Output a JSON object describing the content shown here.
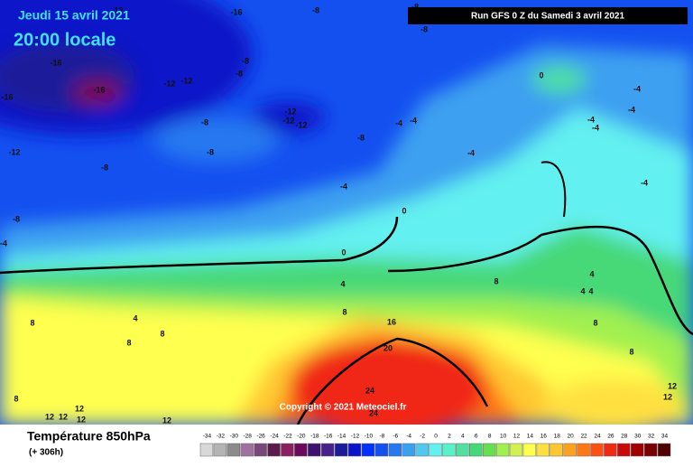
{
  "header": {
    "date": "Jeudi 15 avril 2021",
    "time": "20:00 locale",
    "run": "Run GFS 0 Z du Samedi 3 avril 2021"
  },
  "footer": {
    "title": "Température 850hPa",
    "lead": "(+ 306h)"
  },
  "copyright": "Copyright © 2021 Meteociel.fr",
  "contour_labels": [
    -16,
    -12,
    -8,
    -8,
    -8,
    -16,
    -8,
    -8,
    -16,
    -12,
    -12,
    -16,
    -12,
    -12,
    -12,
    -8,
    -8,
    -4,
    -4,
    -8,
    -12,
    -8,
    0,
    -4,
    -4,
    -4,
    -4,
    -4,
    -4,
    -4,
    0,
    -8,
    -4,
    0,
    4,
    4,
    4,
    4,
    8,
    8,
    4,
    8,
    8,
    8,
    16,
    20,
    8,
    8,
    12,
    12,
    24,
    24,
    8,
    12,
    12,
    12,
    12,
    12
  ],
  "color_scale": {
    "values": [
      -34,
      -32,
      -30,
      -28,
      -26,
      -24,
      -22,
      -20,
      -18,
      -16,
      -14,
      -12,
      -10,
      -8,
      -6,
      -4,
      -2,
      0,
      2,
      4,
      6,
      8,
      10,
      12,
      14,
      16,
      18,
      20,
      22,
      24,
      26,
      28,
      30,
      32,
      34
    ],
    "colors": [
      "#d8d8d8",
      "#b4b4b4",
      "#8c8c8c",
      "#a070a0",
      "#784878",
      "#5a1a4a",
      "#8a2060",
      "#6a0a5a",
      "#401070",
      "#48208c",
      "#1a1a9a",
      "#0a14c8",
      "#0030ff",
      "#1450f0",
      "#2878f0",
      "#3ca0f0",
      "#50c8f0",
      "#64f0f0",
      "#5af0c8",
      "#50e0a0",
      "#46d878",
      "#64e050",
      "#a0f050",
      "#d2f050",
      "#ffff50",
      "#ffe040",
      "#ffc830",
      "#ffa020",
      "#ff7814",
      "#ff5014",
      "#f02814",
      "#c80a0a",
      "#a00000",
      "#780000",
      "#500000"
    ]
  }
}
